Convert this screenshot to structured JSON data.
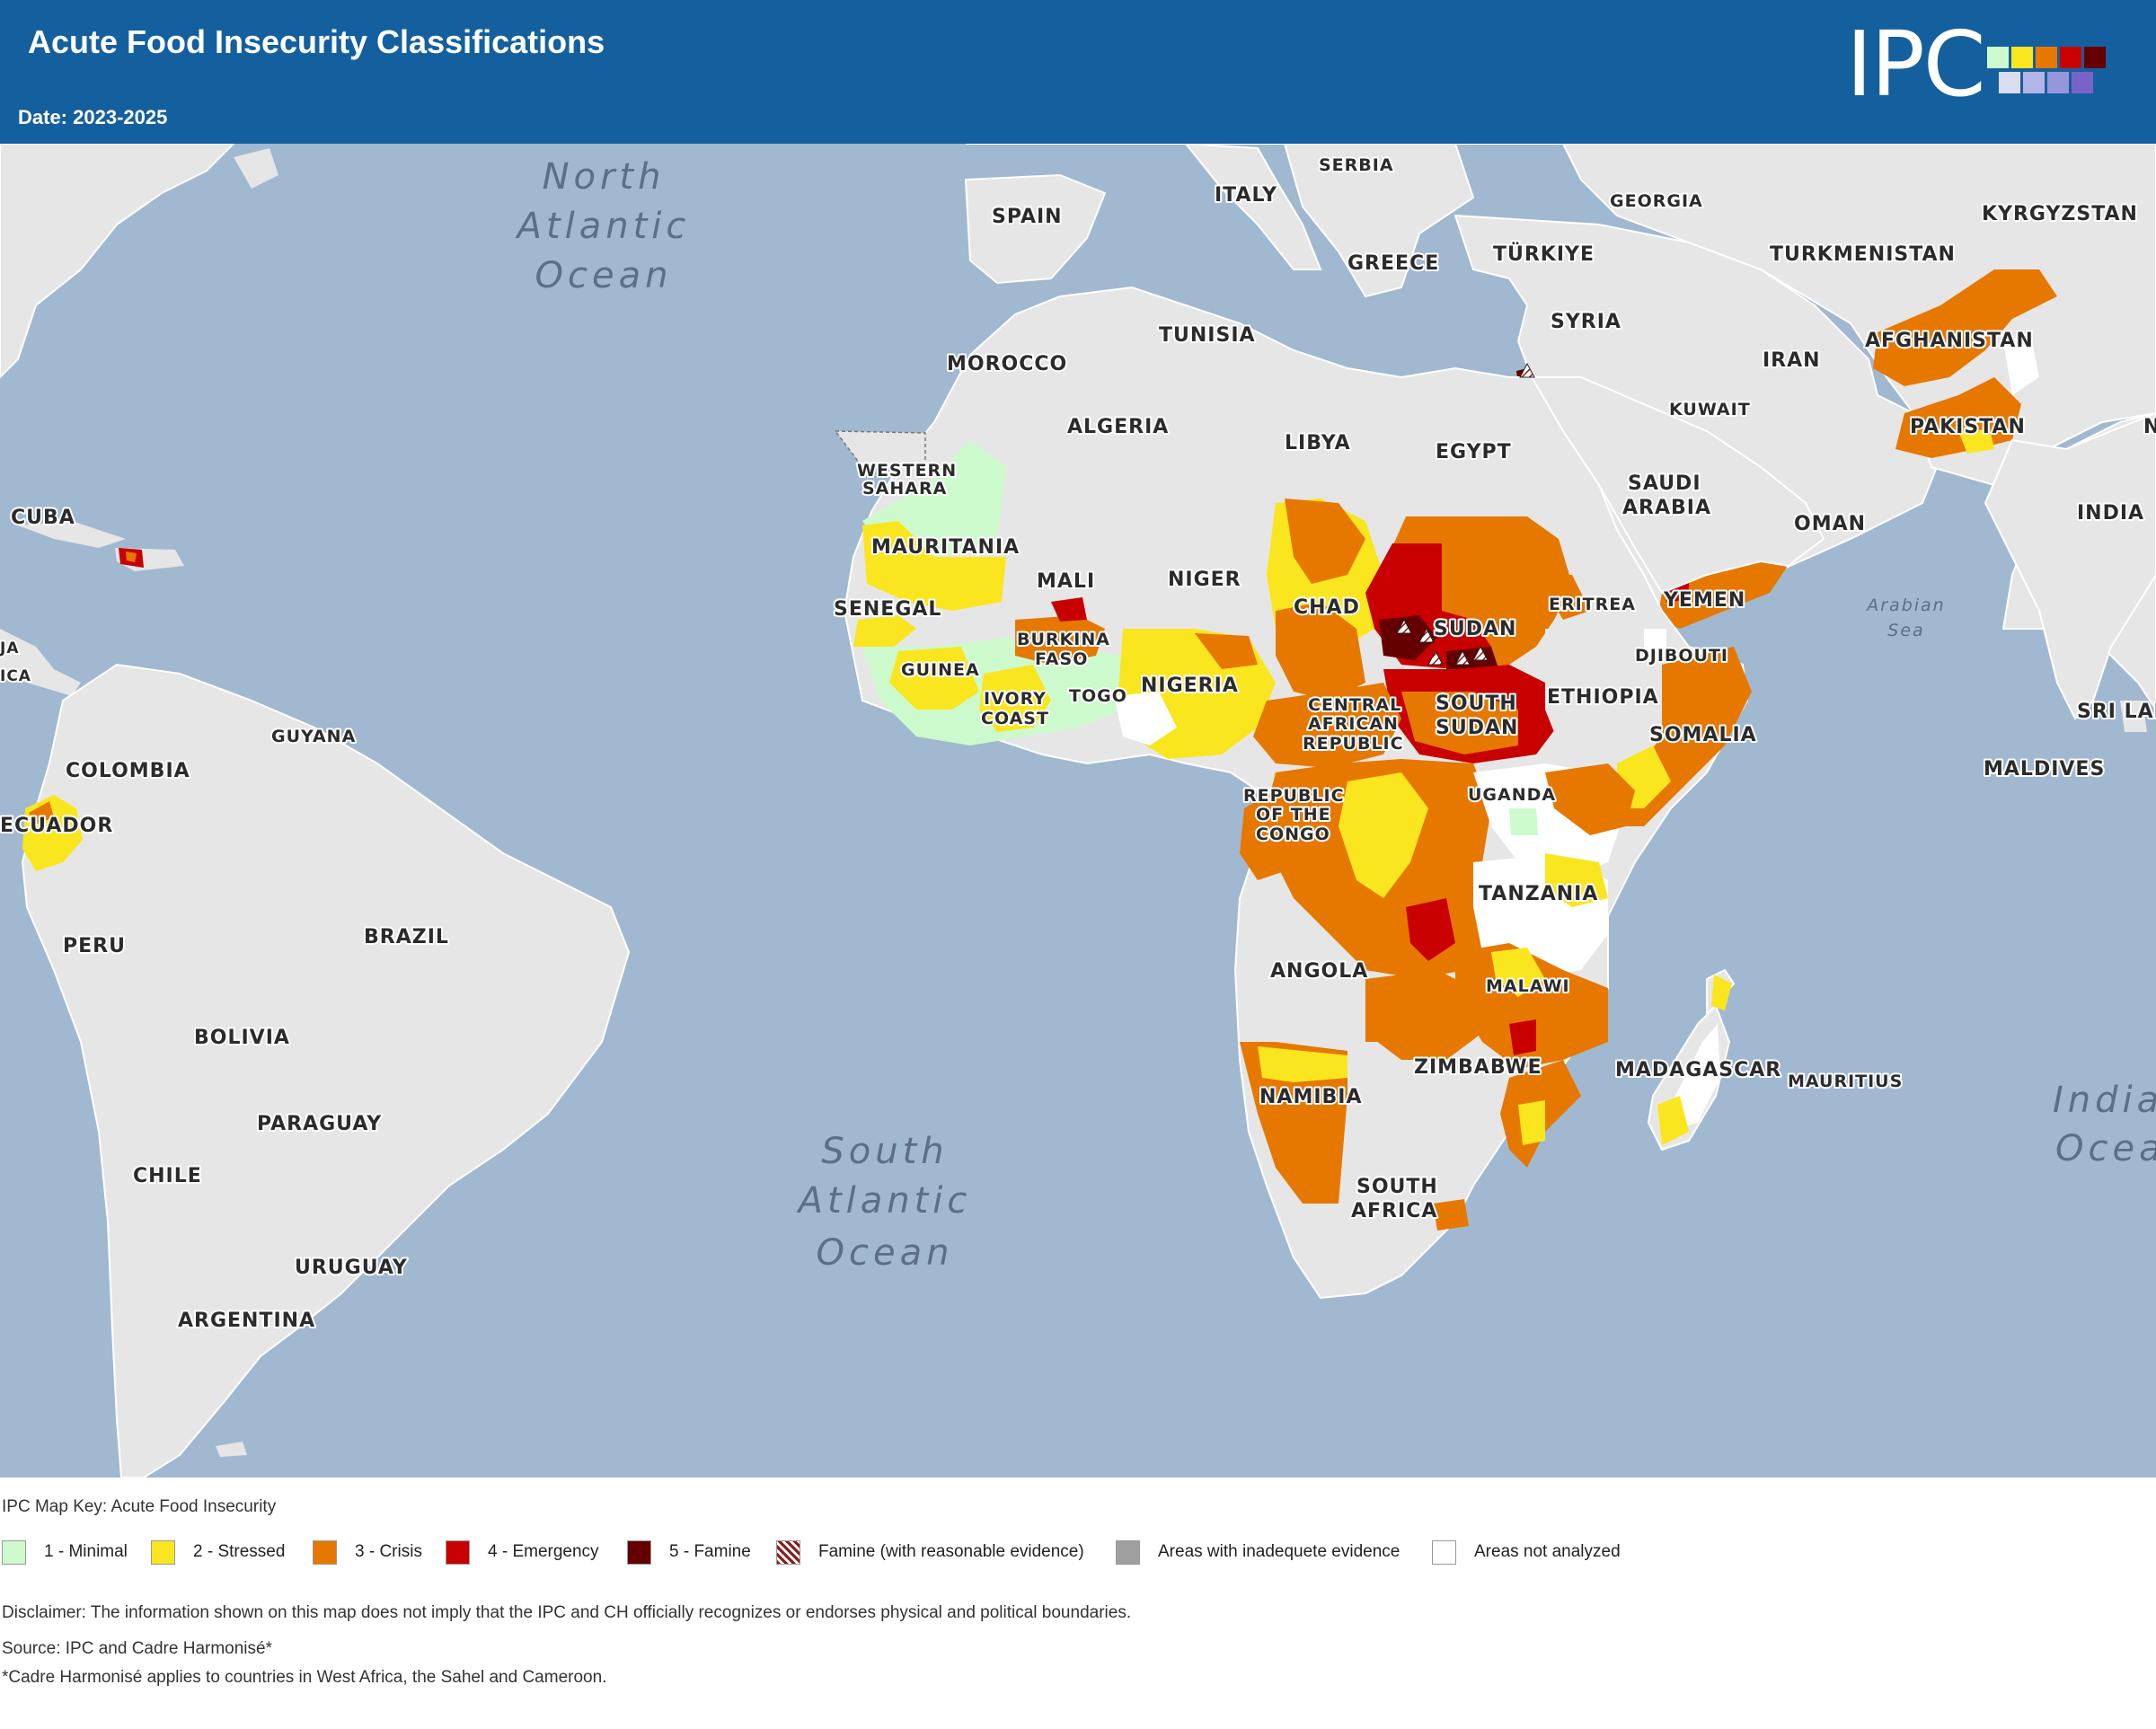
{
  "header": {
    "title": "Acute Food Insecurity Classifications",
    "date": "Date: 2023-2025",
    "logo": "IPC",
    "logo_colors": [
      "#cdfacd",
      "#fae61e",
      "#e67800",
      "#c80000",
      "#640000",
      "#dcdcf0",
      "#b4b4e6",
      "#9696dc",
      "#7864c8"
    ]
  },
  "map": {
    "ocean_color": "#a1b8d1",
    "land_color": "#e6e6e6",
    "phase_colors": {
      "minimal": "#cdfacd",
      "stressed": "#fae61e",
      "crisis": "#e67800",
      "emergency": "#c80000",
      "famine": "#640000"
    },
    "oceans": [
      [
        "North",
        "Atlantic",
        "Ocean"
      ],
      [
        "South",
        "Atlantic",
        "Ocean"
      ],
      [
        "India",
        "Ocea"
      ]
    ],
    "seas": [
      "Arabian",
      "Sea"
    ],
    "labels": {
      "spain": "SPAIN",
      "italy": "ITALY",
      "serbia": "SERBIA",
      "georgia": "GEORGIA",
      "kyrgyzstan": "KYRGYZSTAN",
      "greece": "GREECE",
      "turkiye": "TÜRKIYE",
      "turkmenistan": "TURKMENISTAN",
      "tunisia": "TUNISIA",
      "syria": "SYRIA",
      "afghanistan": "AFGHANISTAN",
      "morocco": "MOROCCO",
      "iran": "IRAN",
      "kuwait": "KUWAIT",
      "algeria": "ALGERIA",
      "libya": "LIBYA",
      "egypt": "EGYPT",
      "pakistan": "PAKISTAN",
      "n_edge": "N",
      "western_sahara_1": "WESTERN",
      "western_sahara_2": "SAHARA",
      "saudi_1": "SAUDI",
      "saudi_2": "ARABIA",
      "cuba": "CUBA",
      "oman": "OMAN",
      "india": "INDIA",
      "mauritania": "MAURITANIA",
      "mali": "MALI",
      "niger": "NIGER",
      "chad": "CHAD",
      "eritrea": "ERITREA",
      "yemen": "YEMEN",
      "senegal": "SENEGAL",
      "sudan": "SUDAN",
      "burkina_1": "BURKINA",
      "burkina_2": "FASO",
      "djibouti": "DJIBOUTI",
      "ja": "JA",
      "ica": "ICA",
      "guinea": "GUINEA",
      "nigeria": "NIGERIA",
      "ethiopia": "ETHIOPIA",
      "ivory_1": "IVORY",
      "ivory_2": "COAST",
      "togo": "TOGO",
      "south_sudan_1": "SOUTH",
      "south_sudan_2": "SUDAN",
      "car_1": "CENTRAL",
      "car_2": "AFRICAN",
      "car_3": "REPUBLIC",
      "sri_lanka": "SRI LAN",
      "somalia": "SOMALIA",
      "guyana": "GUYANA",
      "colombia": "COLOMBIA",
      "maldives": "MALDIVES",
      "uganda": "UGANDA",
      "congo_1": "REPUBLIC",
      "congo_2": "OF THE",
      "congo_3": "CONGO",
      "ecuador": "ECUADOR",
      "tanzania": "TANZANIA",
      "peru": "PERU",
      "brazil": "BRAZIL",
      "angola": "ANGOLA",
      "malawi": "MALAWI",
      "bolivia": "BOLIVIA",
      "zimbabwe": "ZIMBABWE",
      "madagascar": "MADAGASCAR",
      "mauritius": "MAURITIUS",
      "namibia": "NAMIBIA",
      "paraguay": "PARAGUAY",
      "chile": "CHILE",
      "south_africa_1": "SOUTH",
      "south_africa_2": "AFRICA",
      "uruguay": "URUGUAY",
      "argentina": "ARGENTINA"
    }
  },
  "legend": {
    "title": "IPC Map Key: Acute Food Insecurity",
    "items": [
      {
        "label": "1 - Minimal",
        "color": "#cdfacd"
      },
      {
        "label": "2 - Stressed",
        "color": "#fae61e"
      },
      {
        "label": "3 - Crisis",
        "color": "#e67800"
      },
      {
        "label": "4 - Emergency",
        "color": "#c80000"
      },
      {
        "label": "5 - Famine",
        "color": "#640000"
      },
      {
        "label": "Famine (with reasonable evidence)",
        "color": "hatched"
      },
      {
        "label": "Areas with inadequete evidence",
        "color": "#a0a0a0"
      },
      {
        "label": "Areas not analyzed",
        "color": "#ffffff"
      }
    ]
  },
  "footer": {
    "disclaimer": "Disclaimer: The information shown on this map does not imply that the IPC and CH officially recognizes or endorses physical and political boundaries.",
    "source": "Source: IPC and Cadre Harmonisé*",
    "footnote": "*Cadre Harmonisé applies to countries in West Africa, the Sahel and Cameroon."
  }
}
